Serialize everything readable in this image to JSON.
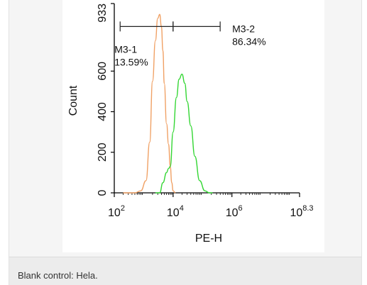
{
  "chart_data": {
    "type": "area",
    "xlabel": "PE-H",
    "ylabel": "Count",
    "x_scale": "log10",
    "xlim": [
      100,
      199526231
    ],
    "ylim": [
      0,
      933
    ],
    "x_ticks": [
      {
        "value": 100,
        "base": "10",
        "exp": "2"
      },
      {
        "value": 10000,
        "base": "10",
        "exp": "4"
      },
      {
        "value": 1000000,
        "base": "10",
        "exp": "6"
      },
      {
        "value": 199526231,
        "base": "10",
        "exp": "8.3"
      }
    ],
    "y_ticks": [
      "0",
      "200",
      "400",
      "600",
      "933"
    ],
    "y_tick_values": [
      0,
      200,
      400,
      600,
      933
    ],
    "series": [
      {
        "color": "#f0a165",
        "x": [
          200,
          500,
          800,
          1200,
          1600,
          2000,
          2500,
          3000,
          3500,
          4000,
          4500,
          5000,
          6000,
          7000,
          8000,
          9000,
          10000,
          12000
        ],
        "y": [
          0,
          0,
          10,
          60,
          250,
          550,
          750,
          860,
          880,
          820,
          700,
          540,
          340,
          240,
          130,
          50,
          10,
          0
        ]
      },
      {
        "color": "#33d633",
        "x": [
          2500,
          3500,
          4500,
          6000,
          7000,
          8000,
          10000,
          13000,
          16000,
          20000,
          25000,
          30000,
          40000,
          55000,
          80000,
          120000,
          170000,
          220000
        ],
        "y": [
          0,
          0,
          50,
          100,
          120,
          130,
          300,
          470,
          560,
          585,
          540,
          450,
          330,
          180,
          60,
          10,
          0,
          0
        ]
      }
    ],
    "gates": [
      {
        "name": "M3-1",
        "percent": "13.59%",
        "x_start": 158,
        "x_end": 10000
      },
      {
        "name": "M3-2",
        "percent": "86.34%",
        "x_start": 10000,
        "x_end": 398107
      }
    ],
    "gate_y": 820
  },
  "caption": "Blank control: Hela."
}
